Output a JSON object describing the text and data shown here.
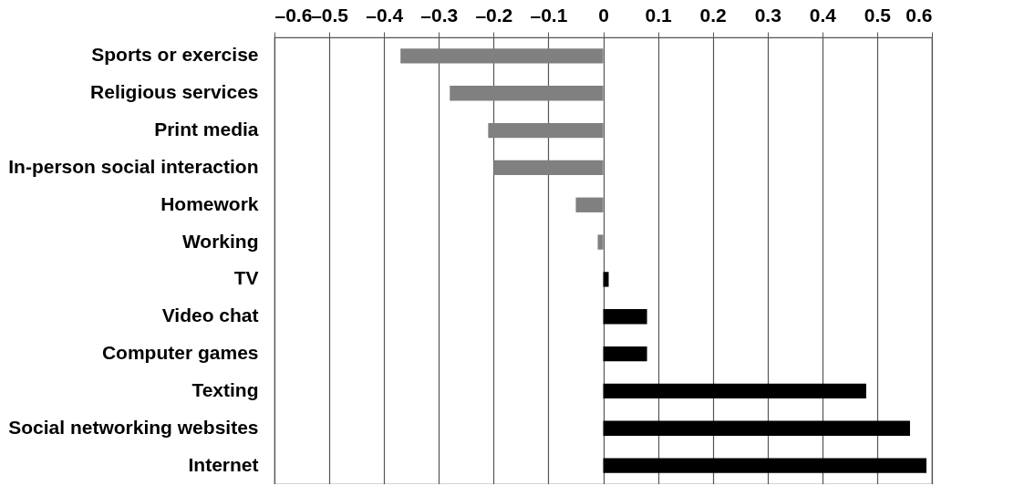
{
  "chart_data": {
    "type": "bar",
    "orientation": "horizontal",
    "categories": [
      "Sports or exercise",
      "Religious services",
      "Print media",
      "In-person social interaction",
      "Homework",
      "Working",
      "TV",
      "Video chat",
      "Computer games",
      "Texting",
      "Social networking websites",
      "Internet"
    ],
    "values": [
      -0.37,
      -0.28,
      -0.21,
      -0.2,
      -0.05,
      -0.01,
      0.01,
      0.08,
      0.08,
      0.48,
      0.56,
      0.59
    ],
    "colors": [
      "#808080",
      "#808080",
      "#808080",
      "#808080",
      "#808080",
      "#808080",
      "#000000",
      "#000000",
      "#000000",
      "#000000",
      "#000000",
      "#000000"
    ],
    "xlim": [
      -0.6,
      0.6
    ],
    "xticks": [
      {
        "value": -0.6,
        "label": "–0.6"
      },
      {
        "value": -0.5,
        "label": "–0.5"
      },
      {
        "value": -0.4,
        "label": "–0.4"
      },
      {
        "value": -0.3,
        "label": "–0.3"
      },
      {
        "value": -0.2,
        "label": "–0.2"
      },
      {
        "value": -0.1,
        "label": "–0.1"
      },
      0,
      0.1,
      0.2,
      0.3,
      0.4,
      0.5,
      0.6
    ],
    "grid": "x"
  }
}
